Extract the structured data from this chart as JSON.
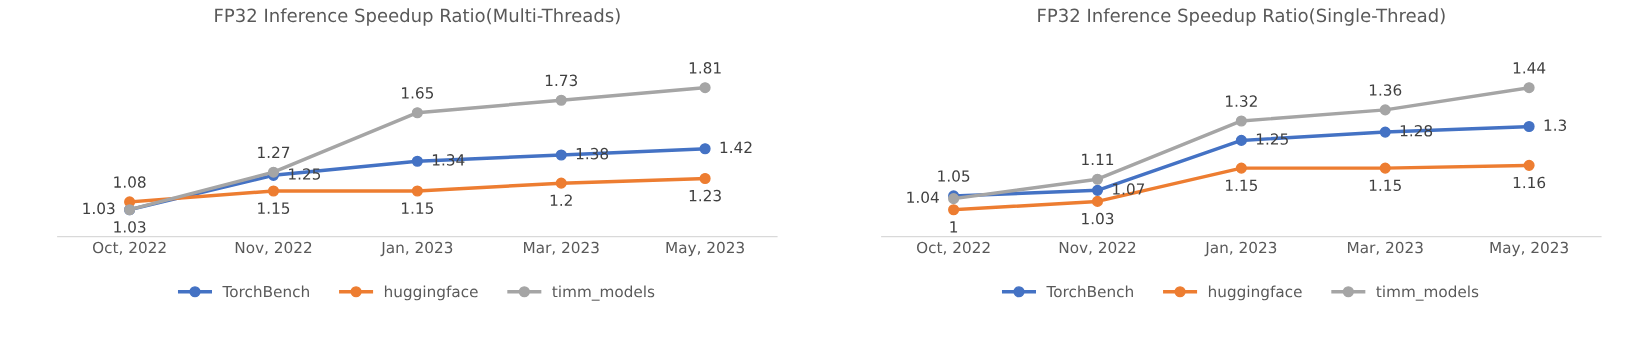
{
  "chart_data": [
    {
      "type": "line",
      "title": "FP32 Inference Speedup Ratio(Multi-Threads)",
      "categories": [
        "Oct, 2022",
        "Nov, 2022",
        "Jan, 2023",
        "Mar, 2023",
        "May, 2023"
      ],
      "tick_labels": "x",
      "data_labels": true,
      "grid": false,
      "legend": "bottom",
      "marker": "circle",
      "series": [
        {
          "name": "TorchBench",
          "color": "#4472c4",
          "values": [
            1.03,
            1.25,
            1.34,
            1.38,
            1.42
          ]
        },
        {
          "name": "huggingface",
          "color": "#ed7d31",
          "values": [
            1.08,
            1.15,
            1.15,
            1.2,
            1.23
          ]
        },
        {
          "name": "timm_models",
          "color": "#a5a5a5",
          "values": [
            1.03,
            1.27,
            1.65,
            1.73,
            1.81
          ]
        }
      ]
    },
    {
      "type": "line",
      "title": "FP32 Inference Speedup Ratio(Single-Thread)",
      "categories": [
        "Oct, 2022",
        "Nov, 2022",
        "Jan, 2023",
        "Mar, 2023",
        "May, 2023"
      ],
      "tick_labels": "x",
      "data_labels": true,
      "grid": false,
      "legend": "bottom",
      "marker": "circle",
      "series": [
        {
          "name": "TorchBench",
          "color": "#4472c4",
          "values": [
            1.05,
            1.07,
            1.25,
            1.28,
            1.3
          ]
        },
        {
          "name": "huggingface",
          "color": "#ed7d31",
          "values": [
            1,
            1.03,
            1.15,
            1.15,
            1.16
          ]
        },
        {
          "name": "timm_models",
          "color": "#a5a5a5",
          "values": [
            1.04,
            1.11,
            1.32,
            1.36,
            1.44
          ]
        }
      ]
    }
  ]
}
